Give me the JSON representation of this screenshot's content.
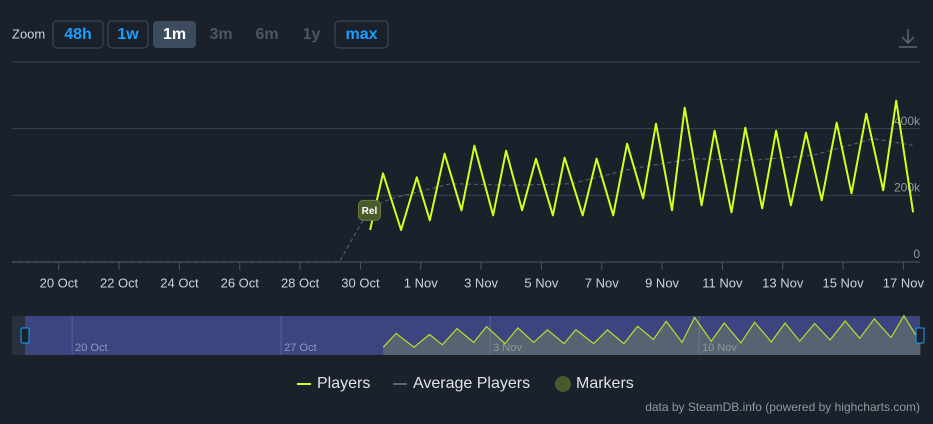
{
  "chart_data": {
    "type": "line",
    "range_selector": {
      "label": "Zoom",
      "buttons": [
        {
          "label": "48h",
          "state": "enabled"
        },
        {
          "label": "1w",
          "state": "enabled"
        },
        {
          "label": "1m",
          "state": "active"
        },
        {
          "label": "3m",
          "state": "disabled"
        },
        {
          "label": "6m",
          "state": "disabled"
        },
        {
          "label": "1y",
          "state": "disabled"
        },
        {
          "label": "max",
          "state": "enabled"
        }
      ]
    },
    "xlim": [
      18.45,
      48.55
    ],
    "xticks": [
      {
        "value": 20,
        "label": "20 Oct"
      },
      {
        "value": 22,
        "label": "22 Oct"
      },
      {
        "value": 24,
        "label": "24 Oct"
      },
      {
        "value": 26,
        "label": "26 Oct"
      },
      {
        "value": 28,
        "label": "28 Oct"
      },
      {
        "value": 30,
        "label": "30 Oct"
      },
      {
        "value": 32,
        "label": "1 Nov"
      },
      {
        "value": 34,
        "label": "3 Nov"
      },
      {
        "value": 36,
        "label": "5 Nov"
      },
      {
        "value": 38,
        "label": "7 Nov"
      },
      {
        "value": 40,
        "label": "9 Nov"
      },
      {
        "value": 42,
        "label": "11 Nov"
      },
      {
        "value": 44,
        "label": "13 Nov"
      },
      {
        "value": 46,
        "label": "15 Nov"
      },
      {
        "value": 48,
        "label": "17 Nov"
      }
    ],
    "ylim": [
      0,
      600000
    ],
    "yticks": [
      0,
      {
        "value": 200000,
        "label": "200k"
      },
      {
        "value": 400000,
        "label": "400k"
      }
    ],
    "grid": true,
    "series": [
      {
        "name": "Players",
        "color": "#d4ff1a",
        "x": [
          30.32,
          30.75,
          31.35,
          31.87,
          32.3,
          32.79,
          33.35,
          33.78,
          34.4,
          34.83,
          35.36,
          35.82,
          36.38,
          36.77,
          37.37,
          37.83,
          38.38,
          38.84,
          39.37,
          39.8,
          40.33,
          40.75,
          41.31,
          41.74,
          42.3,
          42.76,
          43.32,
          43.78,
          44.27,
          44.77,
          45.29,
          45.79,
          46.28,
          46.77,
          47.33,
          47.76,
          48.32
        ],
        "values": [
          96000,
          266000,
          96000,
          254000,
          125000,
          325000,
          155000,
          349000,
          140000,
          334000,
          155000,
          310000,
          140000,
          313000,
          140000,
          310000,
          140000,
          355000,
          191000,
          415000,
          155000,
          463000,
          170000,
          394000,
          149000,
          403000,
          161000,
          394000,
          170000,
          388000,
          185000,
          418000,
          206000,
          445000,
          215000,
          484000,
          149000
        ]
      },
      {
        "name": "Average Players",
        "color": "#5d6673",
        "x": [
          18.45,
          29.3,
          30.3,
          31,
          33,
          35,
          37,
          39,
          41,
          43,
          45,
          47,
          48.3
        ],
        "values": [
          0,
          0,
          160000,
          190000,
          235000,
          230000,
          235000,
          280000,
          310000,
          305000,
          320000,
          370000,
          350000
        ]
      }
    ],
    "markers": {
      "name": "Markers",
      "color": "#4b5a2a",
      "points": [
        {
          "label": "Rel",
          "x": 30.3,
          "y": 155000
        }
      ]
    },
    "navigator": {
      "xlim": [
        18.32,
        48.3
      ],
      "xticks": [
        {
          "value": 20,
          "label": "20 Oct"
        },
        {
          "value": 27,
          "label": "27 Oct"
        },
        {
          "value": 34,
          "label": "3 Nov"
        },
        {
          "value": 41,
          "label": "10 Nov"
        }
      ]
    },
    "credit": "data by SteamDB.info (powered by highcharts.com)"
  }
}
